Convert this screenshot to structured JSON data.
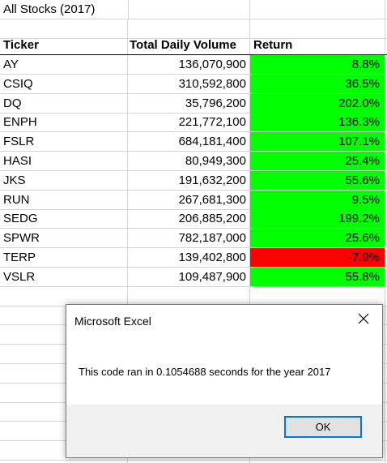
{
  "sheet": {
    "title": "All Stocks (2017)",
    "headers": {
      "ticker": "Ticker",
      "volume": "Total Daily Volume",
      "return": "Return"
    },
    "rows": [
      {
        "ticker": "AY",
        "volume": "136,070,900",
        "return": "8.8%",
        "status": "positive"
      },
      {
        "ticker": "CSIQ",
        "volume": "310,592,800",
        "return": "36.5%",
        "status": "positive"
      },
      {
        "ticker": "DQ",
        "volume": "35,796,200",
        "return": "202.0%",
        "status": "positive"
      },
      {
        "ticker": "ENPH",
        "volume": "221,772,100",
        "return": "136.3%",
        "status": "positive"
      },
      {
        "ticker": "FSLR",
        "volume": "684,181,400",
        "return": "107.1%",
        "status": "positive"
      },
      {
        "ticker": "HASI",
        "volume": "80,949,300",
        "return": "25.4%",
        "status": "positive"
      },
      {
        "ticker": "JKS",
        "volume": "191,632,200",
        "return": "55.6%",
        "status": "positive"
      },
      {
        "ticker": "RUN",
        "volume": "267,681,300",
        "return": "9.5%",
        "status": "positive"
      },
      {
        "ticker": "SEDG",
        "volume": "206,885,200",
        "return": "199.2%",
        "status": "positive"
      },
      {
        "ticker": "SPWR",
        "volume": "782,187,000",
        "return": "25.6%",
        "status": "positive"
      },
      {
        "ticker": "TERP",
        "volume": "139,402,800",
        "return": "-7.9%",
        "status": "negative"
      },
      {
        "ticker": "VSLR",
        "volume": "109,487,900",
        "return": "55.8%",
        "status": "positive"
      }
    ],
    "colors": {
      "positive": "#00ff00",
      "negative": "#ff0000",
      "gridline": "#d4d4d4"
    }
  },
  "dialog": {
    "title": "Microsoft Excel",
    "message": "This code ran in 0.1054688 seconds for the year 2017",
    "ok_label": "OK",
    "close_icon": "close-icon"
  }
}
